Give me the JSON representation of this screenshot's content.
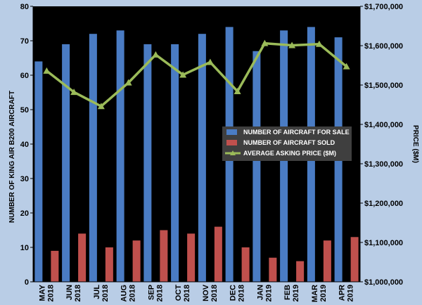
{
  "chart_data": {
    "type": "bar",
    "categories": [
      [
        "MAY",
        "2018"
      ],
      [
        "JUN",
        "2018"
      ],
      [
        "JUL",
        "2018"
      ],
      [
        "AUG",
        "2018"
      ],
      [
        "SEP",
        "2018"
      ],
      [
        "OCT",
        "2018"
      ],
      [
        "NOV",
        "2018"
      ],
      [
        "DEC",
        "2018"
      ],
      [
        "JAN",
        "2019"
      ],
      [
        "FEB",
        "2019"
      ],
      [
        "MAR",
        "2019"
      ],
      [
        "APR",
        "2019"
      ]
    ],
    "series": [
      {
        "name": "NUMBER OF AIRCRAFT FOR SALE",
        "kind": "bar",
        "axis": "left",
        "color": "#4a7cc4",
        "values": [
          64,
          69,
          72,
          73,
          69,
          69,
          72,
          74,
          67,
          73,
          74,
          71
        ]
      },
      {
        "name": "NUMBER OF AIRCRAFT SOLD",
        "kind": "bar",
        "axis": "left",
        "color": "#c0504d",
        "values": [
          9,
          14,
          10,
          12,
          15,
          14,
          16,
          10,
          7,
          6,
          12,
          13
        ]
      },
      {
        "name": "AVERAGE ASKING PRICE ($M)",
        "kind": "line",
        "axis": "right",
        "color": "#9bbb59",
        "values": [
          1536000,
          1482000,
          1446000,
          1506000,
          1577000,
          1526000,
          1558000,
          1484000,
          1606000,
          1601000,
          1604000,
          1547000
        ]
      }
    ],
    "ylabel": "NUMBER OF KING AIR B200 AIRCRAFT",
    "y2label": "PRICE ($M)",
    "ylim": [
      0,
      80
    ],
    "yticks": [
      0,
      10,
      20,
      30,
      40,
      50,
      60,
      70,
      80
    ],
    "y2lim": [
      1000000,
      1700000
    ],
    "y2ticks": [
      "$1,000,000",
      "$1,100,000",
      "$1,200,000",
      "$1,300,000",
      "$1,400,000",
      "$1,500,000",
      "$1,600,000",
      "$1,700,000"
    ],
    "legend_position": "right-middle",
    "grid": false,
    "colors": {
      "plot_background": "#000000",
      "page_background": "#b9cde6",
      "legend_background": "#3f3f3f"
    }
  }
}
